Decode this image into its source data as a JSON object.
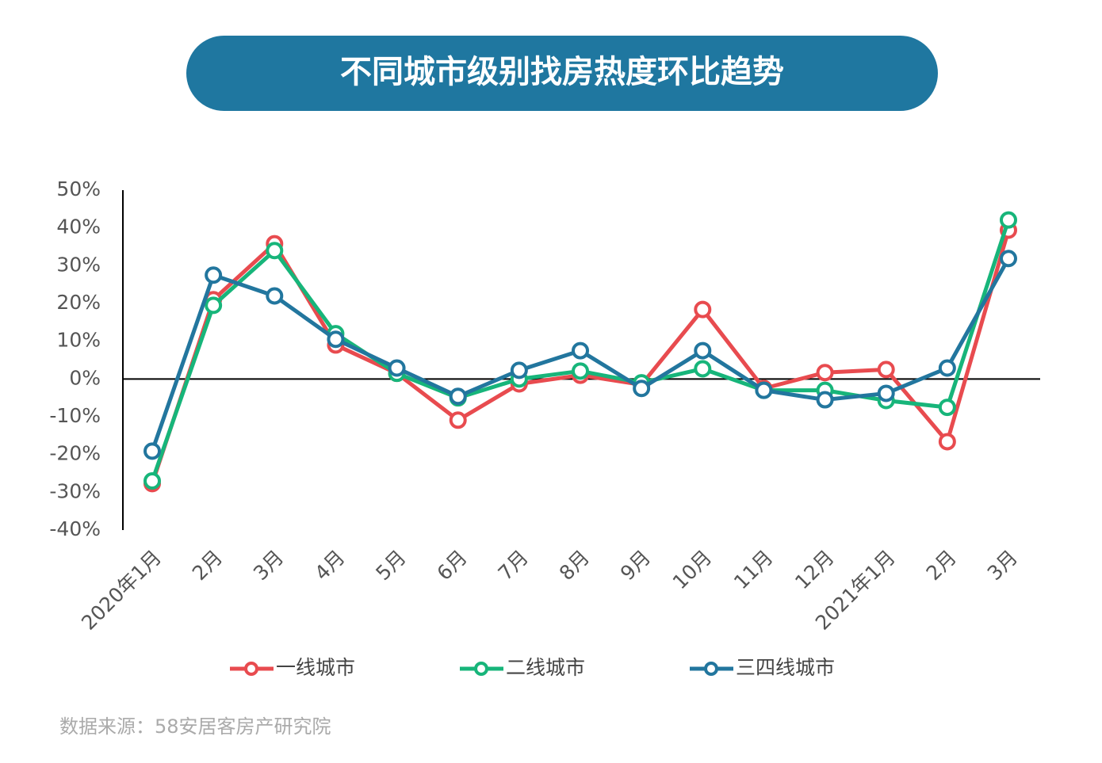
{
  "chart_data": {
    "type": "line",
    "title": "不同城市级别找房热度环比趋势",
    "source": "数据来源：58安居客房产研究院",
    "categories": [
      "2020年1月",
      "2月",
      "3月",
      "4月",
      "5月",
      "6月",
      "7月",
      "8月",
      "9月",
      "10月",
      "11月",
      "12月",
      "2021年1月",
      "2月",
      "3月"
    ],
    "series": [
      {
        "name": "一线城市",
        "color": "#e84b4f",
        "values": [
          -27.7,
          21,
          35.8,
          9,
          1.5,
          -10.9,
          -1.3,
          1,
          -1.5,
          18.4,
          -2.5,
          1.7,
          2.5,
          -16.6,
          39.4
        ]
      },
      {
        "name": "二线城市",
        "color": "#17b57a",
        "values": [
          -27,
          19.5,
          34,
          12,
          1.5,
          -5,
          0,
          2.1,
          -1,
          2.7,
          -3,
          -3,
          -5.7,
          -7.5,
          42.1
        ]
      },
      {
        "name": "三四线城市",
        "color": "#22769e",
        "values": [
          -19.1,
          27.5,
          22,
          10.5,
          2.9,
          -4.6,
          2.3,
          7.5,
          -2.5,
          7.5,
          -3,
          -5.5,
          -3.8,
          2.9,
          31.9
        ]
      }
    ],
    "ylim": [
      -40,
      50
    ],
    "yticks": [
      {
        "value": -40,
        "label": "-40%"
      },
      {
        "value": -30,
        "label": "-30%"
      },
      {
        "value": -20,
        "label": "-20%"
      },
      {
        "value": -10,
        "label": "-10%"
      },
      {
        "value": 0,
        "label": "0%"
      },
      {
        "value": 10,
        "label": "10%"
      },
      {
        "value": 20,
        "label": "20%"
      },
      {
        "value": 30,
        "label": "30%"
      },
      {
        "value": 40,
        "label": "40%"
      },
      {
        "value": 50,
        "label": "50%"
      }
    ]
  }
}
